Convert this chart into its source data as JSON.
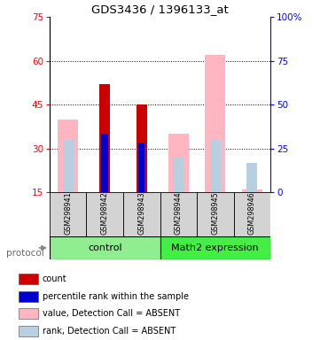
{
  "title": "GDS3436 / 1396133_at",
  "samples": [
    "GSM298941",
    "GSM298942",
    "GSM298943",
    "GSM298944",
    "GSM298945",
    "GSM298946"
  ],
  "ylim_left": [
    15,
    75
  ],
  "ylim_right": [
    0,
    100
  ],
  "yticks_left": [
    15,
    30,
    45,
    60,
    75
  ],
  "yticks_right": [
    0,
    25,
    50,
    75,
    100
  ],
  "yticklabels_right": [
    "0",
    "25",
    "50",
    "75",
    "100%"
  ],
  "value_absent": [
    40,
    15,
    15,
    35,
    62,
    16
  ],
  "rank_absent": [
    33,
    15,
    15,
    27,
    33,
    25
  ],
  "count_present": [
    0,
    52,
    45,
    0,
    0,
    0
  ],
  "rank_present": [
    0,
    35,
    32,
    0,
    0,
    0
  ],
  "colors": {
    "count": "#cc0000",
    "rank": "#0000cc",
    "value_absent": "#ffb6c1",
    "rank_absent": "#b8cfe0",
    "box_bg": "#d3d3d3",
    "ctrl_bg": "#90ee90",
    "math_bg": "#44ee44"
  },
  "legend_items": [
    {
      "color": "#cc0000",
      "label": "count"
    },
    {
      "color": "#0000cc",
      "label": "percentile rank within the sample"
    },
    {
      "color": "#ffb6c1",
      "label": "value, Detection Call = ABSENT"
    },
    {
      "color": "#b8cfe0",
      "label": "rank, Detection Call = ABSENT"
    }
  ]
}
